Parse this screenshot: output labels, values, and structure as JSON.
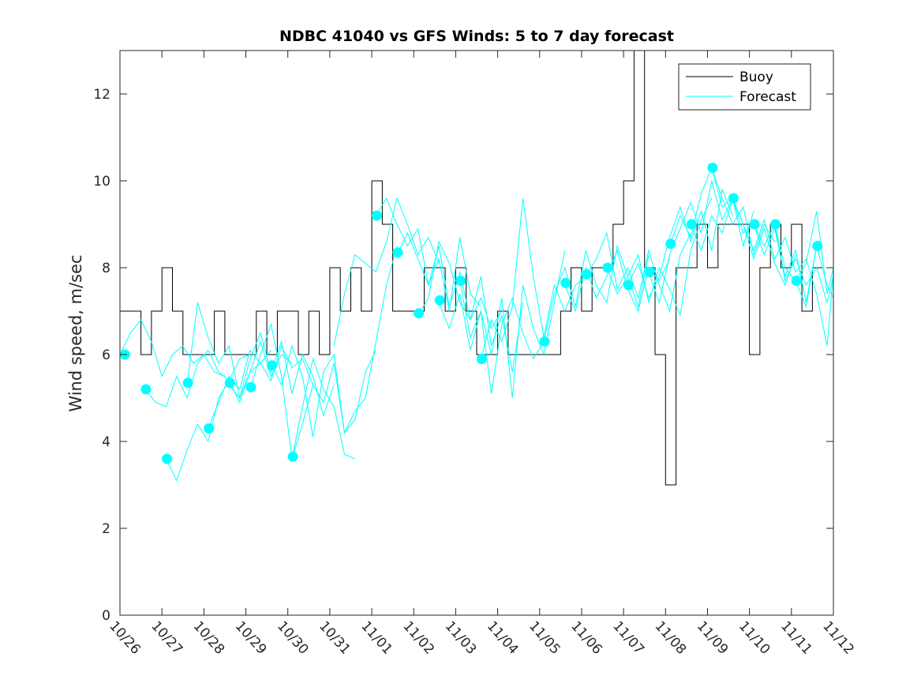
{
  "chart_data": {
    "type": "line",
    "title": "NDBC 41040 vs GFS Winds: 5 to 7 day forecast",
    "xlabel": "",
    "ylabel": "Wind speed, m/sec",
    "xlim": [
      0,
      17
    ],
    "ylim": [
      0,
      13
    ],
    "yticks": [
      0,
      2,
      4,
      6,
      8,
      10,
      12
    ],
    "xtick_labels": [
      "10/26",
      "10/27",
      "10/28",
      "10/29",
      "10/30",
      "10/31",
      "11/01",
      "11/02",
      "11/03",
      "11/04",
      "11/05",
      "11/06",
      "11/07",
      "11/08",
      "11/09",
      "11/10",
      "11/11",
      "11/12"
    ],
    "legend": {
      "position": "top-right",
      "entries": [
        "Buoy",
        "Forecast"
      ]
    },
    "colors": {
      "buoy": "#000000",
      "forecast": "#00ffff"
    },
    "buoy": {
      "name": "Buoy",
      "x": [
        0.0,
        0.25,
        0.5,
        0.75,
        1.0,
        1.25,
        1.5,
        1.75,
        2.0,
        2.25,
        2.5,
        2.75,
        3.0,
        3.25,
        3.5,
        3.75,
        4.0,
        4.25,
        4.5,
        4.75,
        5.0,
        5.25,
        5.5,
        5.75,
        6.0,
        6.25,
        6.5,
        6.75,
        7.0,
        7.25,
        7.5,
        7.75,
        8.0,
        8.25,
        8.5,
        8.75,
        9.0,
        9.25,
        9.5,
        9.75,
        10.0,
        10.25,
        10.5,
        10.75,
        11.0,
        11.25,
        11.5,
        11.75,
        12.0,
        12.25,
        12.5,
        12.75,
        13.0,
        13.25,
        13.5,
        13.75,
        14.0,
        14.25,
        14.5,
        14.75,
        15.0,
        15.25,
        15.5,
        15.75,
        16.0,
        16.25,
        16.5
      ],
      "values": [
        7,
        7,
        6,
        7,
        8,
        7,
        6,
        6,
        6,
        7,
        6,
        6,
        6,
        7,
        6,
        7,
        7,
        6,
        7,
        6,
        8,
        7,
        8,
        7,
        10,
        9,
        7,
        7,
        7,
        8,
        8,
        7,
        8,
        7,
        6,
        6,
        7,
        6,
        6,
        6,
        6,
        6,
        7,
        8,
        7,
        8,
        8,
        9,
        10,
        13,
        8,
        6,
        3,
        8,
        8,
        9,
        8,
        9,
        9,
        9,
        6,
        8,
        9,
        8,
        9,
        7,
        8
      ]
    },
    "forecast_runs": [
      {
        "x": [
          0.0,
          0.25,
          0.5,
          0.75,
          1.0,
          1.25,
          1.5,
          1.75,
          2.0,
          2.25,
          2.5
        ],
        "values": [
          6.0,
          6.5,
          6.8,
          6.3,
          5.5,
          6.0,
          6.2,
          5.8,
          6.0,
          5.6,
          5.5
        ]
      },
      {
        "x": [
          0.6,
          0.85,
          1.1,
          1.35,
          1.6,
          1.85,
          2.1,
          2.35,
          2.6,
          2.85,
          3.1
        ],
        "values": [
          5.2,
          4.9,
          4.8,
          5.5,
          5.0,
          5.8,
          6.1,
          5.6,
          5.4,
          5.9,
          6.0
        ]
      },
      {
        "x": [
          1.1,
          1.35,
          1.6,
          1.85,
          2.1,
          2.35,
          2.6,
          2.85,
          3.1,
          3.35,
          3.6
        ],
        "values": [
          3.6,
          3.1,
          3.8,
          4.4,
          4.0,
          5.0,
          5.4,
          4.9,
          5.6,
          5.8,
          6.1
        ]
      },
      {
        "x": [
          1.6,
          1.85,
          2.1,
          2.35,
          2.6,
          2.85,
          3.1,
          3.35,
          3.6,
          3.85,
          4.1
        ],
        "values": [
          5.3,
          7.2,
          6.4,
          5.8,
          6.2,
          5.0,
          5.6,
          6.3,
          5.5,
          6.0,
          5.8
        ]
      },
      {
        "x": [
          2.1,
          2.35,
          2.6,
          2.85,
          3.1,
          3.35,
          3.6,
          3.85,
          4.1,
          4.35,
          4.6
        ],
        "values": [
          4.3,
          4.9,
          5.5,
          5.2,
          6.1,
          5.8,
          5.4,
          6.2,
          5.7,
          5.9,
          5.3
        ]
      },
      {
        "x": [
          2.6,
          2.85,
          3.1,
          3.35,
          3.6,
          3.85,
          4.1,
          4.35,
          4.6,
          4.85,
          5.1
        ],
        "values": [
          5.3,
          5.0,
          5.9,
          6.5,
          5.6,
          6.3,
          5.1,
          6.0,
          5.5,
          4.6,
          5.3
        ]
      },
      {
        "x": [
          3.1,
          3.35,
          3.6,
          3.85,
          4.1,
          4.35,
          4.6,
          4.85,
          5.1,
          5.35,
          5.6
        ],
        "values": [
          5.2,
          6.0,
          6.7,
          5.5,
          3.6,
          4.8,
          5.9,
          5.2,
          4.8,
          3.7,
          3.6
        ]
      },
      {
        "x": [
          3.6,
          3.85,
          4.1,
          4.35,
          4.6,
          4.85,
          5.1,
          5.35,
          5.6,
          5.85,
          6.1
        ],
        "values": [
          5.8,
          5.3,
          6.2,
          5.5,
          4.1,
          5.6,
          6.0,
          4.2,
          4.5,
          5.6,
          6.1
        ]
      },
      {
        "x": [
          4.1,
          4.35,
          4.6,
          4.85,
          5.1,
          5.35,
          5.6,
          5.85,
          6.1,
          6.35,
          6.6
        ],
        "values": [
          3.6,
          4.4,
          5.3,
          4.9,
          5.8,
          4.2,
          4.7,
          5.0,
          6.3,
          7.6,
          8.5
        ]
      },
      {
        "x": [
          5.1,
          5.35,
          5.6,
          5.85,
          6.1,
          6.35,
          6.6,
          6.85,
          7.1,
          7.35,
          7.6
        ],
        "values": [
          6.2,
          7.4,
          8.3,
          8.1,
          7.9,
          8.6,
          9.6,
          9.0,
          8.3,
          8.7,
          8.1
        ]
      },
      {
        "x": [
          6.1,
          6.35,
          6.6,
          6.85,
          7.1,
          7.35,
          7.6,
          7.85,
          8.1,
          8.35,
          8.6
        ],
        "values": [
          9.2,
          9.6,
          9.0,
          8.5,
          8.9,
          7.6,
          8.2,
          7.0,
          8.7,
          7.4,
          7.1
        ]
      },
      {
        "x": [
          6.6,
          6.85,
          7.1,
          7.35,
          7.6,
          7.85,
          8.1,
          8.35,
          8.6,
          8.85,
          9.1
        ],
        "values": [
          8.3,
          8.8,
          8.2,
          7.6,
          8.5,
          7.1,
          7.9,
          6.8,
          7.3,
          6.6,
          7.0
        ]
      },
      {
        "x": [
          7.1,
          7.35,
          7.6,
          7.85,
          8.1,
          8.35,
          8.6,
          8.85,
          9.1,
          9.35,
          9.6
        ],
        "values": [
          6.9,
          7.3,
          8.6,
          8.1,
          7.2,
          6.8,
          7.8,
          6.2,
          6.9,
          5.6,
          7.2
        ]
      },
      {
        "x": [
          7.6,
          7.85,
          8.1,
          8.35,
          8.6,
          8.85,
          9.1,
          9.35,
          9.6,
          9.85,
          10.1
        ],
        "values": [
          7.2,
          6.6,
          7.4,
          6.1,
          7.0,
          5.1,
          6.7,
          7.3,
          6.5,
          5.9,
          6.3
        ]
      },
      {
        "x": [
          8.1,
          8.35,
          8.6,
          8.85,
          9.1,
          9.35,
          9.6,
          9.85,
          10.1,
          10.35,
          10.6
        ],
        "values": [
          7.7,
          6.4,
          7.0,
          6.0,
          7.3,
          5.0,
          7.6,
          6.6,
          6.0,
          7.2,
          8.4
        ]
      },
      {
        "x": [
          8.6,
          8.85,
          9.1,
          9.35,
          9.6,
          9.85,
          10.1,
          10.35,
          10.6,
          10.85,
          11.1
        ],
        "values": [
          5.9,
          6.8,
          6.3,
          7.1,
          9.6,
          7.8,
          6.4,
          7.6,
          7.0,
          7.6,
          7.8
        ]
      },
      {
        "x": [
          10.1,
          10.35,
          10.6,
          10.85,
          11.1,
          11.35,
          11.6,
          11.85,
          12.1,
          12.35,
          12.6
        ],
        "values": [
          6.3,
          7.4,
          8.0,
          7.1,
          8.4,
          7.6,
          7.2,
          8.5,
          7.8,
          7.1,
          8.3
        ]
      },
      {
        "x": [
          10.6,
          10.85,
          11.1,
          11.35,
          11.6,
          11.85,
          12.1,
          12.35,
          12.6,
          12.85,
          13.1
        ],
        "values": [
          7.6,
          7.0,
          8.0,
          7.3,
          7.8,
          8.4,
          7.5,
          7.0,
          8.0,
          7.7,
          8.2
        ]
      },
      {
        "x": [
          11.1,
          11.35,
          11.6,
          11.85,
          12.1,
          12.35,
          12.6,
          12.85,
          13.1,
          13.35,
          13.6
        ],
        "values": [
          7.8,
          8.2,
          8.8,
          7.5,
          8.0,
          7.3,
          8.4,
          7.6,
          7.0,
          8.3,
          8.8
        ]
      },
      {
        "x": [
          11.6,
          11.85,
          12.1,
          12.35,
          12.6,
          12.85,
          13.1,
          13.35,
          13.6,
          13.85,
          14.1
        ],
        "values": [
          8.0,
          7.4,
          7.8,
          8.3,
          7.2,
          8.0,
          7.5,
          6.9,
          8.4,
          9.1,
          9.6
        ]
      },
      {
        "x": [
          12.1,
          12.35,
          12.6,
          12.85,
          13.1,
          13.35,
          13.6,
          13.85,
          14.1,
          14.35,
          14.6
        ],
        "values": [
          7.6,
          8.1,
          7.3,
          7.8,
          8.7,
          9.4,
          8.6,
          9.3,
          8.4,
          9.8,
          9.2
        ]
      },
      {
        "x": [
          12.6,
          12.85,
          13.1,
          13.35,
          13.6,
          13.85,
          14.1,
          14.35,
          14.6,
          14.85,
          15.1
        ],
        "values": [
          7.9,
          7.2,
          8.3,
          8.9,
          9.5,
          8.8,
          10.0,
          9.1,
          9.6,
          8.5,
          9.3
        ]
      },
      {
        "x": [
          13.1,
          13.35,
          13.6,
          13.85,
          14.1,
          14.35,
          14.6,
          14.85,
          15.1,
          15.35,
          15.6
        ],
        "values": [
          8.5,
          9.2,
          8.7,
          9.7,
          10.3,
          9.6,
          9.0,
          9.4,
          8.3,
          9.0,
          8.6
        ]
      },
      {
        "x": [
          13.6,
          13.85,
          14.1,
          14.35,
          14.6,
          14.85,
          15.1,
          15.35,
          15.6,
          15.85,
          16.1
        ],
        "values": [
          9.0,
          8.4,
          9.2,
          8.8,
          9.6,
          9.0,
          8.2,
          8.9,
          8.1,
          7.6,
          8.3
        ]
      },
      {
        "x": [
          14.1,
          14.35,
          14.6,
          14.85,
          15.1,
          15.35,
          15.6,
          15.85,
          16.1,
          16.35,
          16.6
        ],
        "values": [
          10.3,
          9.4,
          9.6,
          8.8,
          9.0,
          8.5,
          9.0,
          8.0,
          7.7,
          7.1,
          8.5
        ]
      },
      {
        "x": [
          14.6,
          14.85,
          15.1,
          15.35,
          15.6,
          15.85,
          16.1,
          16.35,
          16.6,
          16.85,
          17.0
        ],
        "values": [
          9.6,
          9.0,
          8.4,
          9.1,
          8.2,
          8.7,
          7.9,
          8.2,
          7.4,
          6.2,
          7.9
        ]
      },
      {
        "x": [
          15.1,
          15.35,
          15.6,
          15.85,
          16.1,
          16.35,
          16.6,
          16.85,
          17.0
        ],
        "values": [
          9.0,
          8.3,
          8.9,
          7.8,
          8.4,
          7.2,
          8.5,
          7.6,
          7.3
        ]
      },
      {
        "x": [
          15.6,
          15.85,
          16.1,
          16.35,
          16.6,
          16.85,
          17.0
        ],
        "values": [
          9.0,
          7.7,
          8.2,
          7.6,
          8.0,
          7.2,
          7.8
        ]
      },
      {
        "x": [
          16.1,
          16.35,
          16.6,
          16.85,
          17.0
        ],
        "values": [
          7.7,
          8.1,
          9.3,
          7.4,
          8.0
        ]
      }
    ],
    "forecast_markers": {
      "x": [
        0.12,
        0.62,
        1.12,
        1.62,
        2.12,
        2.62,
        3.12,
        3.62,
        4.12,
        6.12,
        6.62,
        7.12,
        7.62,
        8.12,
        8.62,
        10.12,
        10.62,
        11.12,
        11.62,
        12.12,
        12.62,
        13.12,
        13.62,
        14.12,
        14.62,
        15.12,
        15.62,
        16.12,
        16.62
      ],
      "values": [
        6.0,
        5.2,
        3.6,
        5.35,
        4.3,
        5.35,
        5.25,
        5.75,
        3.65,
        9.2,
        8.35,
        6.95,
        7.25,
        7.7,
        5.9,
        6.3,
        7.65,
        7.85,
        8.0,
        7.6,
        7.9,
        8.55,
        9.0,
        10.3,
        9.6,
        9.0,
        9.0,
        7.7,
        8.5
      ]
    }
  }
}
